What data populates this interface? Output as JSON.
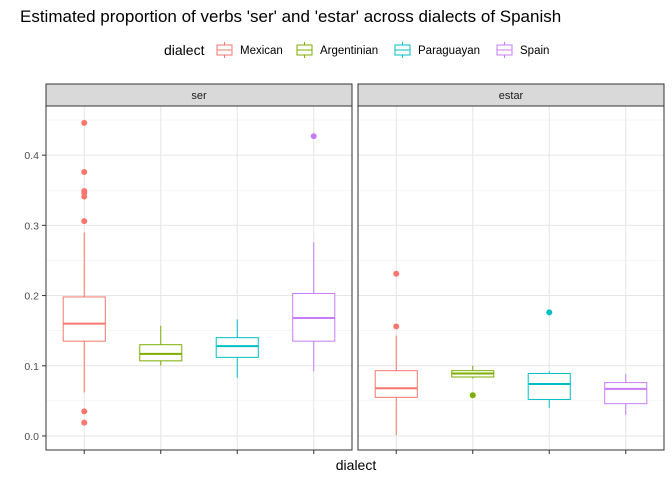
{
  "chart_data": {
    "type": "boxplot",
    "title": "Estimated proportion of verbs 'ser' and 'estar' across dialects of Spanish",
    "xlabel": "dialect",
    "ylabel": "",
    "ylim": [
      -0.02,
      0.47
    ],
    "yticks": [
      0.0,
      0.1,
      0.2,
      0.3,
      0.4
    ],
    "ytick_labels": [
      "0.0",
      "0.1",
      "0.2",
      "0.3",
      "0.4"
    ],
    "grid": true,
    "legend": {
      "title": "dialect",
      "position": "top",
      "entries": [
        {
          "label": "Mexican",
          "color": "#F8766D"
        },
        {
          "label": "Argentinian",
          "color": "#7CAE00"
        },
        {
          "label": "Paraguayan",
          "color": "#00BFC4"
        },
        {
          "label": "Spain",
          "color": "#C77CFF"
        }
      ]
    },
    "categories": [
      "Mexican",
      "Argentinian",
      "Paraguayan",
      "Spain"
    ],
    "facets": [
      {
        "label": "ser",
        "boxes": [
          {
            "category": "Mexican",
            "whisker_low": 0.062,
            "q1": 0.135,
            "median": 0.16,
            "q3": 0.198,
            "whisker_high": 0.29,
            "outliers": [
              0.446,
              0.376,
              0.349,
              0.346,
              0.341,
              0.306,
              0.035,
              0.019
            ]
          },
          {
            "category": "Argentinian",
            "whisker_low": 0.1,
            "q1": 0.107,
            "median": 0.117,
            "q3": 0.13,
            "whisker_high": 0.157,
            "outliers": []
          },
          {
            "category": "Paraguayan",
            "whisker_low": 0.083,
            "q1": 0.112,
            "median": 0.128,
            "q3": 0.14,
            "whisker_high": 0.166,
            "outliers": []
          },
          {
            "category": "Spain",
            "whisker_low": 0.092,
            "q1": 0.135,
            "median": 0.168,
            "q3": 0.203,
            "whisker_high": 0.276,
            "outliers": [
              0.427
            ]
          }
        ]
      },
      {
        "label": "estar",
        "boxes": [
          {
            "category": "Mexican",
            "whisker_low": 0.001,
            "q1": 0.055,
            "median": 0.068,
            "q3": 0.093,
            "whisker_high": 0.143,
            "outliers": [
              0.231,
              0.156
            ]
          },
          {
            "category": "Argentinian",
            "whisker_low": 0.082,
            "q1": 0.084,
            "median": 0.089,
            "q3": 0.093,
            "whisker_high": 0.1,
            "outliers": [
              0.058
            ]
          },
          {
            "category": "Paraguayan",
            "whisker_low": 0.04,
            "q1": 0.052,
            "median": 0.074,
            "q3": 0.089,
            "whisker_high": 0.092,
            "outliers": [
              0.176
            ]
          },
          {
            "category": "Spain",
            "whisker_low": 0.03,
            "q1": 0.046,
            "median": 0.067,
            "q3": 0.076,
            "whisker_high": 0.088,
            "outliers": []
          }
        ]
      }
    ]
  }
}
